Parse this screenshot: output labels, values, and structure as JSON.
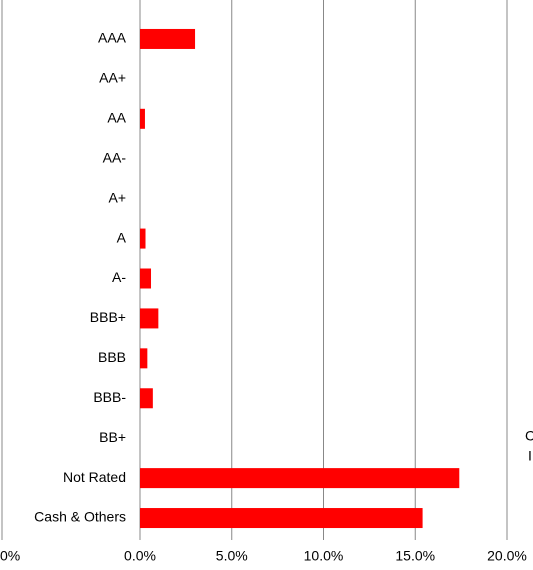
{
  "chart_data": {
    "type": "bar",
    "orientation": "horizontal",
    "categories": [
      "AAA",
      "AA+",
      "AA",
      "AA-",
      "A+",
      "A",
      "A-",
      "BBB+",
      "BBB",
      "BBB-",
      "BB+",
      "Not Rated",
      "Cash & Others"
    ],
    "values": [
      3.0,
      0,
      0.27,
      0,
      0,
      0.3,
      0.6,
      1.0,
      0.4,
      0.7,
      0,
      17.4,
      15.4
    ],
    "color": "#ff0000",
    "xlim": [
      0,
      20
    ],
    "xticks": [
      {
        "value": 0,
        "label": "0.0%"
      },
      {
        "value": 5,
        "label": "5.0%"
      },
      {
        "value": 10,
        "label": "10.0%"
      },
      {
        "value": 15,
        "label": "15.0%"
      },
      {
        "value": 20,
        "label": "20.0%"
      }
    ],
    "grid": true
  },
  "fragments": [
    "0%",
    "C",
    "I"
  ]
}
